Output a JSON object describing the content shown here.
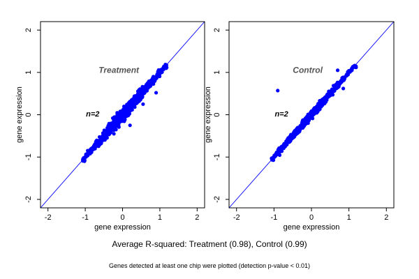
{
  "chart_data": [
    {
      "type": "scatter",
      "title": "Treatment",
      "annotation": "n=2",
      "xlabel": "gene expression",
      "ylabel": "gene expression",
      "xlim": [
        -2.2,
        2.2
      ],
      "ylim": [
        -2.2,
        2.2
      ],
      "xticks": [
        -2,
        -1,
        0,
        1,
        2
      ],
      "yticks": [
        -2,
        -1,
        0,
        1,
        2
      ],
      "identity_line": true,
      "point_color": "#0000ff",
      "line_color": "#0000ff",
      "cloud": {
        "x_range": [
          -1.05,
          1.15
        ],
        "corr": 0.98
      },
      "outliers": [
        {
          "x": 0.9,
          "y": 0.52
        },
        {
          "x": 0.2,
          "y": -0.25
        },
        {
          "x": 0.55,
          "y": 0.25
        }
      ]
    },
    {
      "type": "scatter",
      "title": "Control",
      "annotation": "n=2",
      "xlabel": "gene expression",
      "ylabel": "gene expression",
      "xlim": [
        -2.2,
        2.2
      ],
      "ylim": [
        -2.2,
        2.2
      ],
      "xticks": [
        -2,
        -1,
        0,
        1,
        2
      ],
      "yticks": [
        -2,
        -1,
        0,
        1,
        2
      ],
      "identity_line": true,
      "point_color": "#0000ff",
      "line_color": "#0000ff",
      "cloud": {
        "x_range": [
          -1.05,
          1.15
        ],
        "corr": 0.99
      },
      "outliers": [
        {
          "x": -0.9,
          "y": 0.57
        },
        {
          "x": 0.7,
          "y": 1.05
        },
        {
          "x": 0.85,
          "y": 0.62
        }
      ]
    }
  ],
  "captions": {
    "r_squared": "Average R-squared: Treatment (0.98), Control (0.99)",
    "note": "Genes detected at least one chip were plotted (detection p-value < 0.01)"
  }
}
